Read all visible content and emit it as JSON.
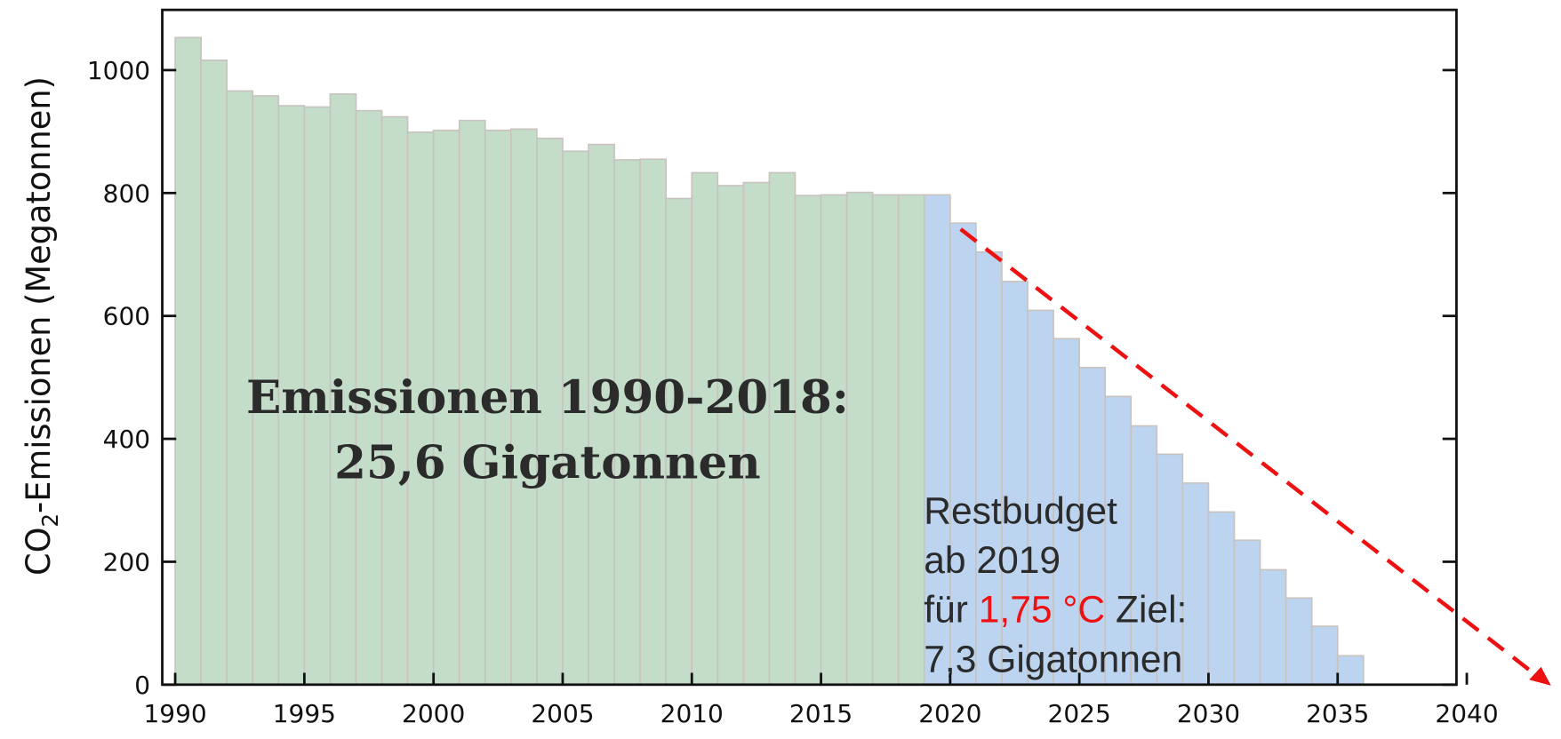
{
  "chart_data": {
    "type": "bar",
    "ylabel": [
      "CO",
      "2",
      "-Emissionen (Megatonnen)"
    ],
    "annotations": {
      "total": [
        "Emissionen 1990-2018:",
        "25,6 Gigatonnen"
      ],
      "budget": [
        "Restbudget",
        "ab 2019",
        "für ",
        "1,75 °C",
        " Ziel:",
        "7,3 Gigatonnen"
      ]
    },
    "series": [
      {
        "color": "#c3ddc8",
        "x": [
          1990,
          1991,
          1992,
          1993,
          1994,
          1995,
          1996,
          1997,
          1998,
          1999,
          2000,
          2001,
          2002,
          2003,
          2004,
          2005,
          2006,
          2007,
          2008,
          2009,
          2010,
          2011,
          2012,
          2013,
          2014,
          2015,
          2016,
          2017,
          2018
        ],
        "values": [
          1053,
          1016,
          966,
          958,
          942,
          940,
          961,
          934,
          924,
          899,
          902,
          918,
          902,
          904,
          889,
          868,
          879,
          854,
          855,
          791,
          833,
          812,
          817,
          833,
          796,
          797,
          801,
          797,
          797
        ]
      },
      {
        "color": "#bcd4f0",
        "x": [
          2019,
          2020,
          2021,
          2022,
          2023,
          2024,
          2025,
          2026,
          2027,
          2028,
          2029,
          2030,
          2031,
          2032,
          2033,
          2034,
          2035
        ],
        "values": [
          797,
          751,
          704,
          656,
          609,
          563,
          516,
          469,
          421,
          375,
          328,
          281,
          235,
          187,
          141,
          95,
          47
        ]
      }
    ],
    "xlim": [
      1989.5,
      2039.6
    ],
    "xticks": [
      1990,
      1995,
      2000,
      2005,
      2010,
      2015,
      2020,
      2025,
      2030,
      2035,
      2040
    ],
    "ylim": [
      0,
      1098
    ],
    "yticks": [
      0,
      200,
      400,
      600,
      800,
      1000
    ]
  }
}
